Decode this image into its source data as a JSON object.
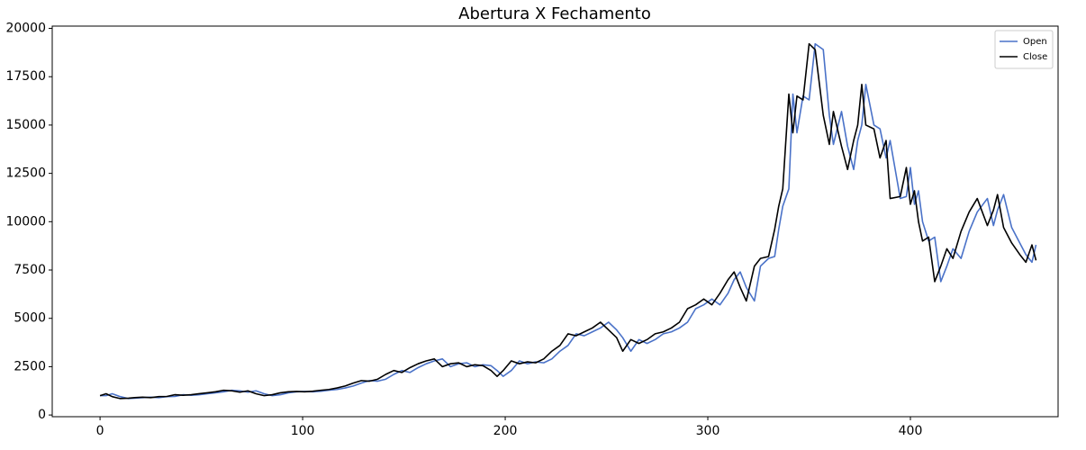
{
  "chart_data": {
    "type": "line",
    "title": "Abertura X Fechamento",
    "x": [
      0,
      3,
      6,
      10,
      14,
      17,
      21,
      25,
      29,
      33,
      37,
      41,
      45,
      49,
      53,
      57,
      61,
      65,
      69,
      73,
      77,
      81,
      85,
      89,
      93,
      97,
      101,
      105,
      109,
      113,
      117,
      121,
      125,
      129,
      133,
      137,
      141,
      145,
      149,
      153,
      157,
      161,
      165,
      169,
      173,
      177,
      181,
      185,
      189,
      193,
      196,
      199,
      203,
      207,
      211,
      215,
      219,
      223,
      227,
      231,
      235,
      239,
      243,
      247,
      251,
      255,
      258,
      262,
      266,
      270,
      274,
      278,
      282,
      286,
      290,
      294,
      298,
      302,
      306,
      310,
      313,
      316,
      319,
      323,
      326,
      330,
      333,
      335,
      337,
      340,
      342,
      344,
      347,
      350,
      353,
      357,
      360,
      362,
      366,
      369,
      372,
      374,
      376,
      378,
      382,
      385,
      388,
      390,
      395,
      398,
      400,
      402,
      404,
      406,
      409,
      412,
      415,
      418,
      421,
      425,
      429,
      433,
      438,
      441,
      443,
      446,
      450,
      454,
      457,
      460,
      462
    ],
    "series": [
      {
        "name": "Open",
        "color": "#4a72c8",
        "values": [
          1000,
          1000,
          1100,
          950,
          850,
          870,
          900,
          920,
          900,
          950,
          960,
          1050,
          1020,
          1050,
          1100,
          1150,
          1200,
          1280,
          1250,
          1180,
          1250,
          1100,
          1000,
          1050,
          1150,
          1200,
          1220,
          1200,
          1230,
          1280,
          1320,
          1400,
          1500,
          1650,
          1780,
          1750,
          1850,
          2100,
          2300,
          2200,
          2450,
          2650,
          2800,
          2900,
          2500,
          2650,
          2700,
          2500,
          2600,
          2550,
          2300,
          2000,
          2300,
          2800,
          2650,
          2750,
          2700,
          2900,
          3300,
          3600,
          4200,
          4100,
          4300,
          4500,
          4800,
          4400,
          4000,
          3300,
          3900,
          3700,
          3900,
          4200,
          4300,
          4500,
          4800,
          5500,
          5700,
          6000,
          5700,
          6300,
          7000,
          7400,
          6600,
          5900,
          7700,
          8100,
          8200,
          9600,
          10800,
          11700,
          16600,
          14600,
          16500,
          16300,
          19200,
          18900,
          15500,
          14000,
          15700,
          13900,
          12700,
          14200,
          15000,
          17100,
          15000,
          14800,
          13300,
          14200,
          11200,
          11300,
          12800,
          10900,
          11600,
          10000,
          9000,
          9200,
          6900,
          7700,
          8600,
          8100,
          9500,
          10500,
          11200,
          9800,
          10600,
          11400,
          9700,
          8900,
          8300,
          7900,
          8800
        ]
      },
      {
        "name": "Close",
        "color": "#000000",
        "values": [
          1000,
          1100,
          950,
          850,
          870,
          900,
          920,
          900,
          950,
          960,
          1050,
          1020,
          1050,
          1100,
          1150,
          1200,
          1280,
          1250,
          1180,
          1250,
          1100,
          1000,
          1050,
          1150,
          1200,
          1220,
          1200,
          1230,
          1280,
          1320,
          1400,
          1500,
          1650,
          1780,
          1750,
          1850,
          2100,
          2300,
          2200,
          2450,
          2650,
          2800,
          2900,
          2500,
          2650,
          2700,
          2500,
          2600,
          2550,
          2300,
          2000,
          2300,
          2800,
          2650,
          2750,
          2700,
          2900,
          3300,
          3600,
          4200,
          4100,
          4300,
          4500,
          4800,
          4400,
          4000,
          3300,
          3900,
          3700,
          3900,
          4200,
          4300,
          4500,
          4800,
          5500,
          5700,
          6000,
          5700,
          6300,
          7000,
          7400,
          6600,
          5900,
          7700,
          8100,
          8200,
          9600,
          10800,
          11700,
          16600,
          14600,
          16500,
          16300,
          19200,
          18900,
          15500,
          14000,
          15700,
          13900,
          12700,
          14200,
          15000,
          17100,
          15000,
          14800,
          13300,
          14200,
          11200,
          11300,
          12800,
          10900,
          11600,
          10000,
          9000,
          9200,
          6900,
          7700,
          8600,
          8100,
          9500,
          10500,
          11200,
          9800,
          10600,
          11400,
          9700,
          8900,
          8300,
          7900,
          8800,
          8000
        ]
      }
    ],
    "xlim": [
      -23.6,
      472.9
    ],
    "xticks": [
      0,
      100,
      200,
      300,
      400
    ],
    "ylim": [
      -88,
      20118
    ],
    "yticks": [
      0,
      2500,
      5000,
      7500,
      10000,
      12500,
      15000,
      17500,
      20000
    ],
    "grid": false,
    "legend": "upper right"
  }
}
